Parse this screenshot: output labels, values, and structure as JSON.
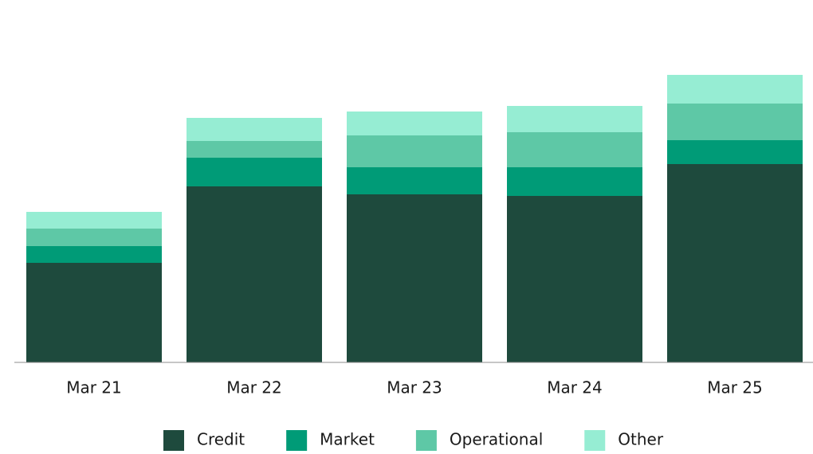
{
  "chart_data": {
    "type": "stacked_bar",
    "categories": [
      "Mar 21",
      "Mar 22",
      "Mar 23",
      "Mar 24",
      "Mar 25"
    ],
    "series": [
      {
        "name": "Credit",
        "color": "#1e4a3d",
        "values": [
          125,
          221,
          211,
          209,
          249
        ]
      },
      {
        "name": "Market",
        "color": "#009b77",
        "values": [
          21,
          36,
          34,
          36,
          30
        ]
      },
      {
        "name": "Operational",
        "color": "#5ec8a6",
        "values": [
          22,
          21,
          40,
          44,
          46
        ]
      },
      {
        "name": "Other",
        "color": "#96edd3",
        "values": [
          21,
          29,
          30,
          33,
          36
        ]
      }
    ],
    "legend": "bottom"
  }
}
